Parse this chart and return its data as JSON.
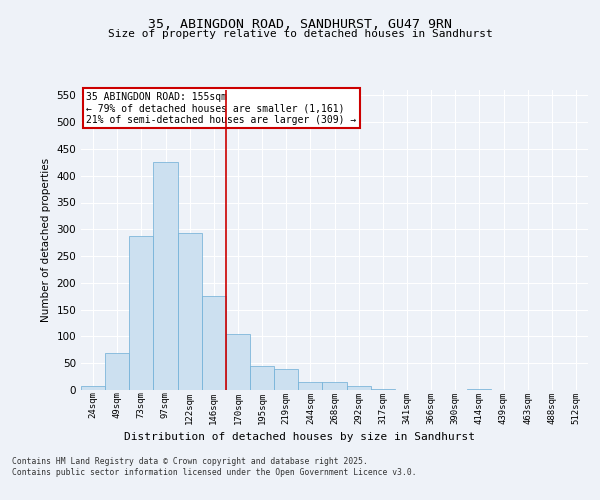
{
  "title_line1": "35, ABINGDON ROAD, SANDHURST, GU47 9RN",
  "title_line2": "Size of property relative to detached houses in Sandhurst",
  "xlabel": "Distribution of detached houses by size in Sandhurst",
  "ylabel": "Number of detached properties",
  "bin_labels": [
    "24sqm",
    "49sqm",
    "73sqm",
    "97sqm",
    "122sqm",
    "146sqm",
    "170sqm",
    "195sqm",
    "219sqm",
    "244sqm",
    "268sqm",
    "292sqm",
    "317sqm",
    "341sqm",
    "366sqm",
    "390sqm",
    "414sqm",
    "439sqm",
    "463sqm",
    "488sqm",
    "512sqm"
  ],
  "bar_values": [
    7,
    70,
    288,
    425,
    293,
    175,
    105,
    44,
    40,
    15,
    15,
    8,
    1,
    0,
    0,
    0,
    1,
    0,
    0,
    0,
    0
  ],
  "bar_color": "#cce0f0",
  "bar_edge_color": "#6badd6",
  "vline_x": 5.5,
  "vline_color": "#cc0000",
  "annotation_line1": "35 ABINGDON ROAD: 155sqm",
  "annotation_line2": "← 79% of detached houses are smaller (1,161)",
  "annotation_line3": "21% of semi-detached houses are larger (309) →",
  "annotation_box_color": "#cc0000",
  "ylim": [
    0,
    560
  ],
  "yticks": [
    0,
    50,
    100,
    150,
    200,
    250,
    300,
    350,
    400,
    450,
    500,
    550
  ],
  "footer_text": "Contains HM Land Registry data © Crown copyright and database right 2025.\nContains public sector information licensed under the Open Government Licence v3.0.",
  "bg_color": "#eef2f8",
  "plot_bg_color": "#eef2f8",
  "grid_color": "#ffffff"
}
